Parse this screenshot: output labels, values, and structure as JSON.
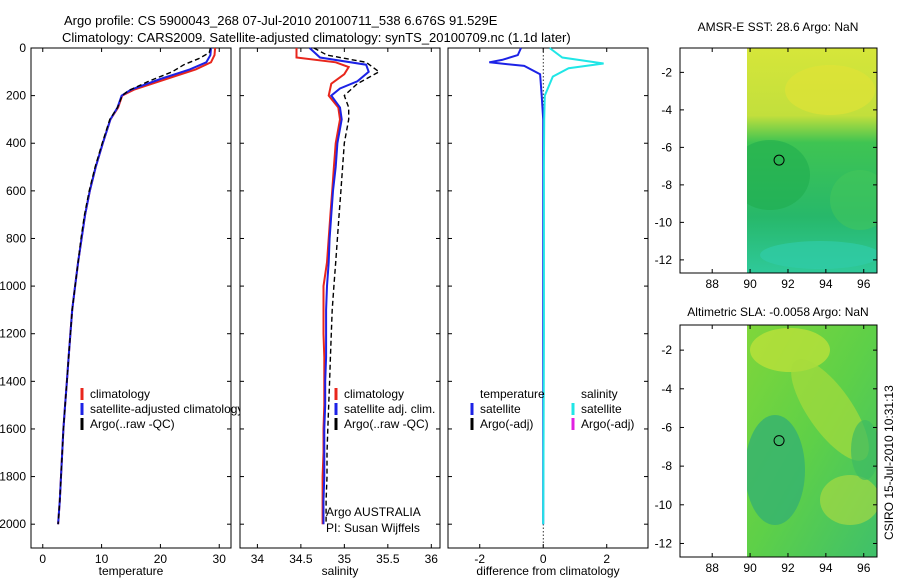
{
  "header": {
    "title_line1": "Argo profile: CS 5900043_268 07-Jul-2010 20100711_538 6.676S 91.529E",
    "title_line2": "Climatology: CARS2009. Satellite-adjusted climatology: synTS_20100709.nc (1.1d later)"
  },
  "footer": {
    "argo_line": "Argo AUSTRALIA",
    "pi_line": "PI: Susan Wijffels",
    "timestamp": "CSIRO 15-Jul-2010 10:31:13"
  },
  "colors": {
    "climatology": "#e8261c",
    "satellite": "#1c22e6",
    "argo": "#000000",
    "satellite_diff": "#20e6e6",
    "argo_adj": "#e020e0"
  },
  "chart_data": [
    {
      "id": "temperature",
      "type": "line",
      "xlabel": "temperature",
      "xlim": [
        -2,
        32
      ],
      "ylim": [
        2100,
        0
      ],
      "xticks": [
        0,
        10,
        20,
        30
      ],
      "yticks": [
        0,
        200,
        400,
        600,
        800,
        1000,
        1200,
        1400,
        1600,
        1800,
        2000
      ],
      "legend": [
        "climatology",
        "satellite-adjusted climatology",
        "Argo(..raw -QC)"
      ],
      "series": [
        {
          "name": "climatology",
          "color": "climatology",
          "style": "solid",
          "points": [
            [
              29.3,
              0
            ],
            [
              29.2,
              30
            ],
            [
              28.6,
              60
            ],
            [
              26,
              90
            ],
            [
              21,
              130
            ],
            [
              15.5,
              175
            ],
            [
              13.5,
              200
            ],
            [
              12.8,
              250
            ],
            [
              11.5,
              300
            ],
            [
              10.2,
              400
            ],
            [
              9,
              500
            ],
            [
              8,
              600
            ],
            [
              7.2,
              700
            ],
            [
              6.6,
              800
            ],
            [
              6,
              900
            ],
            [
              5.5,
              1000
            ],
            [
              5,
              1100
            ],
            [
              4.7,
              1200
            ],
            [
              4.4,
              1300
            ],
            [
              4.1,
              1400
            ],
            [
              3.8,
              1500
            ],
            [
              3.5,
              1600
            ],
            [
              3.3,
              1700
            ],
            [
              3.1,
              1800
            ],
            [
              2.9,
              1900
            ],
            [
              2.6,
              2000
            ]
          ]
        },
        {
          "name": "satellite-adjusted climatology",
          "color": "satellite",
          "style": "solid",
          "points": [
            [
              28.6,
              0
            ],
            [
              28.5,
              30
            ],
            [
              27.8,
              60
            ],
            [
              25,
              90
            ],
            [
              20,
              130
            ],
            [
              15,
              175
            ],
            [
              13.4,
              200
            ],
            [
              12.7,
              250
            ],
            [
              11.5,
              300
            ],
            [
              10.2,
              400
            ],
            [
              9,
              500
            ],
            [
              8,
              600
            ],
            [
              7.2,
              700
            ],
            [
              6.6,
              800
            ],
            [
              6,
              900
            ],
            [
              5.5,
              1000
            ],
            [
              5,
              1100
            ],
            [
              4.7,
              1200
            ],
            [
              4.4,
              1300
            ],
            [
              4.1,
              1400
            ],
            [
              3.8,
              1500
            ],
            [
              3.5,
              1600
            ],
            [
              3.3,
              1700
            ],
            [
              3.1,
              1800
            ],
            [
              2.9,
              1900
            ],
            [
              2.6,
              2000
            ]
          ]
        },
        {
          "name": "Argo(..raw -QC)",
          "color": "argo",
          "style": "dashed",
          "points": [
            [
              28.5,
              0
            ],
            [
              28.3,
              20
            ],
            [
              26.5,
              45
            ],
            [
              24,
              70
            ],
            [
              22,
              100
            ],
            [
              18,
              140
            ],
            [
              14.5,
              180
            ],
            [
              13.5,
              200
            ],
            [
              12.7,
              250
            ],
            [
              11.4,
              300
            ],
            [
              10.1,
              400
            ],
            [
              8.9,
              500
            ],
            [
              7.9,
              600
            ],
            [
              7.1,
              700
            ],
            [
              6.5,
              800
            ],
            [
              6,
              900
            ],
            [
              5.5,
              1000
            ],
            [
              5,
              1100
            ],
            [
              4.7,
              1200
            ],
            [
              4.4,
              1300
            ],
            [
              4.1,
              1400
            ],
            [
              3.8,
              1500
            ],
            [
              3.5,
              1600
            ],
            [
              3.3,
              1700
            ],
            [
              3.1,
              1800
            ],
            [
              2.9,
              1900
            ],
            [
              2.6,
              2000
            ]
          ]
        }
      ]
    },
    {
      "id": "salinity",
      "type": "line",
      "xlabel": "salinity",
      "xlim": [
        33.8,
        36.1
      ],
      "ylim": [
        2100,
        0
      ],
      "xticks": [
        34,
        34.5,
        35,
        35.5,
        36
      ],
      "legend": [
        "climatology",
        "satellite adj. clim.",
        "Argo(..raw -QC)"
      ],
      "series": [
        {
          "name": "climatology",
          "color": "climatology",
          "style": "solid",
          "points": [
            [
              34.45,
              0
            ],
            [
              34.45,
              40
            ],
            [
              34.9,
              60
            ],
            [
              35.05,
              80
            ],
            [
              35,
              110
            ],
            [
              34.85,
              150
            ],
            [
              34.82,
              200
            ],
            [
              34.93,
              250
            ],
            [
              34.95,
              300
            ],
            [
              34.9,
              400
            ],
            [
              34.88,
              500
            ],
            [
              34.86,
              600
            ],
            [
              34.84,
              700
            ],
            [
              34.82,
              800
            ],
            [
              34.8,
              900
            ],
            [
              34.76,
              1000
            ],
            [
              34.76,
              1100
            ],
            [
              34.76,
              1200
            ],
            [
              34.77,
              1300
            ],
            [
              34.77,
              1400
            ],
            [
              34.77,
              1500
            ],
            [
              34.76,
              1600
            ],
            [
              34.76,
              1700
            ],
            [
              34.75,
              1800
            ],
            [
              34.75,
              1900
            ],
            [
              34.75,
              2000
            ]
          ]
        },
        {
          "name": "satellite adj. clim.",
          "color": "satellite",
          "style": "solid",
          "points": [
            [
              34.6,
              0
            ],
            [
              34.72,
              40
            ],
            [
              35.25,
              70
            ],
            [
              35.28,
              100
            ],
            [
              35.15,
              140
            ],
            [
              34.95,
              170
            ],
            [
              34.85,
              200
            ],
            [
              34.95,
              250
            ],
            [
              34.97,
              300
            ],
            [
              34.92,
              400
            ],
            [
              34.9,
              500
            ],
            [
              34.87,
              600
            ],
            [
              34.85,
              700
            ],
            [
              34.83,
              800
            ],
            [
              34.82,
              900
            ],
            [
              34.8,
              1000
            ],
            [
              34.79,
              1100
            ],
            [
              34.79,
              1200
            ],
            [
              34.79,
              1300
            ],
            [
              34.78,
              1400
            ],
            [
              34.78,
              1500
            ],
            [
              34.77,
              1600
            ],
            [
              34.77,
              1700
            ],
            [
              34.77,
              1800
            ],
            [
              34.76,
              1900
            ],
            [
              34.76,
              2000
            ]
          ]
        },
        {
          "name": "Argo(..raw -QC)",
          "color": "argo",
          "style": "dashed",
          "points": [
            [
              34.65,
              0
            ],
            [
              34.8,
              30
            ],
            [
              35.25,
              60
            ],
            [
              35.4,
              100
            ],
            [
              35.15,
              150
            ],
            [
              35,
              200
            ],
            [
              35.05,
              250
            ],
            [
              35.05,
              300
            ],
            [
              35,
              400
            ],
            [
              34.98,
              500
            ],
            [
              34.96,
              600
            ],
            [
              34.94,
              700
            ],
            [
              34.92,
              800
            ],
            [
              34.9,
              900
            ],
            [
              34.88,
              1000
            ],
            [
              34.86,
              1100
            ],
            [
              34.85,
              1200
            ],
            [
              34.84,
              1300
            ],
            [
              34.83,
              1400
            ],
            [
              34.82,
              1500
            ],
            [
              34.81,
              1600
            ],
            [
              34.8,
              1700
            ],
            [
              34.8,
              1800
            ],
            [
              34.79,
              1900
            ],
            [
              34.79,
              2000
            ]
          ]
        }
      ]
    },
    {
      "id": "difference",
      "type": "line",
      "xlabel": "difference from climatology",
      "xlim": [
        -3,
        3.3
      ],
      "ylim": [
        2100,
        0
      ],
      "xticks": [
        -2,
        0,
        2
      ],
      "legend_groups": [
        {
          "heading": "temperature",
          "items": [
            {
              "label": "satellite",
              "color": "satellite"
            },
            {
              "label": "Argo(-adj)",
              "color": "argo"
            }
          ]
        },
        {
          "heading": "salinity",
          "items": [
            {
              "label": "satellite",
              "color": "satellite_diff"
            },
            {
              "label": "Argo(-adj)",
              "color": "argo_adj"
            }
          ]
        }
      ],
      "series": [
        {
          "name": "temperature satellite",
          "color": "satellite",
          "style": "solid",
          "points": [
            [
              -0.7,
              0
            ],
            [
              -0.8,
              30
            ],
            [
              -1.3,
              50
            ],
            [
              -1.7,
              60
            ],
            [
              -0.6,
              75
            ],
            [
              -0.1,
              110
            ],
            [
              -0.05,
              200
            ],
            [
              0,
              300
            ],
            [
              0,
              500
            ],
            [
              0,
              800
            ],
            [
              0,
              1200
            ],
            [
              0,
              1600
            ],
            [
              0,
              2000
            ]
          ]
        },
        {
          "name": "salinity satellite",
          "color": "satellite_diff",
          "style": "solid",
          "points": [
            [
              0.2,
              0
            ],
            [
              0.6,
              40
            ],
            [
              1.9,
              65
            ],
            [
              0.8,
              85
            ],
            [
              0.3,
              120
            ],
            [
              0.05,
              200
            ],
            [
              0.03,
              300
            ],
            [
              0.02,
              500
            ],
            [
              0.02,
              800
            ],
            [
              0.02,
              1200
            ],
            [
              0.01,
              1600
            ],
            [
              0,
              2000
            ]
          ]
        }
      ]
    },
    {
      "id": "sst_map",
      "type": "heatmap",
      "title": "AMSR-E SST: 28.6 Argo: NaN",
      "xlim": [
        86.3,
        96.7
      ],
      "ylim": [
        -12.7,
        -0.7
      ],
      "xticks": [
        88,
        90,
        92,
        94,
        96
      ],
      "yticks": [
        -2,
        -4,
        -6,
        -8,
        -10,
        -12
      ],
      "data_xrange": [
        90,
        96.7
      ],
      "marker": [
        91.53,
        -6.68
      ]
    },
    {
      "id": "sla_map",
      "type": "heatmap",
      "title": "Altimetric SLA: -0.0058 Argo: NaN",
      "xlim": [
        86.3,
        96.7
      ],
      "ylim": [
        -12.7,
        -0.7
      ],
      "xticks": [
        88,
        90,
        92,
        94,
        96
      ],
      "yticks": [
        -2,
        -4,
        -6,
        -8,
        -10,
        -12
      ],
      "data_xrange": [
        90,
        96.7
      ],
      "marker": [
        91.53,
        -6.68
      ]
    }
  ]
}
